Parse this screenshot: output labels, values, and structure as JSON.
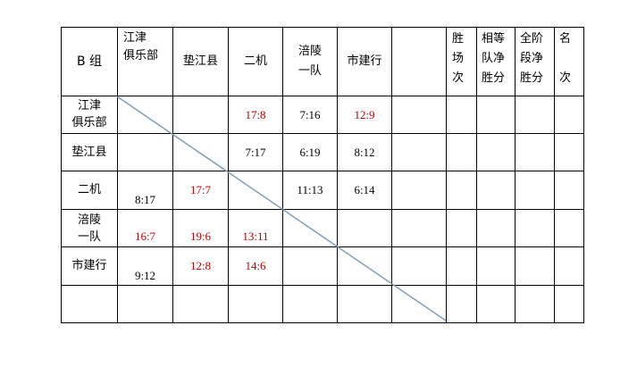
{
  "table": {
    "corner": "B 组",
    "team_headers": [
      "江津\n俱乐部",
      "垫江县",
      "二机",
      "涪陵\n一队",
      "市建行",
      ""
    ],
    "stat_headers": [
      "胜\n场\n次",
      "相等\n队净\n胜分",
      "全阶\n段净\n胜分",
      "名\n\n次"
    ],
    "rows": [
      {
        "team": "江津\n俱乐部",
        "cells": [
          {
            "v": ""
          },
          {
            "v": ""
          },
          {
            "v": "17:8",
            "red": true
          },
          {
            "v": "7:16"
          },
          {
            "v": "12:9",
            "red": true
          },
          {
            "v": ""
          }
        ]
      },
      {
        "team": "垫江县",
        "cells": [
          {
            "v": ""
          },
          {
            "v": ""
          },
          {
            "v": "7:17"
          },
          {
            "v": "6:19"
          },
          {
            "v": "8:12"
          },
          {
            "v": ""
          }
        ]
      },
      {
        "team": "二机",
        "cells": [
          {
            "v": "8:17"
          },
          {
            "v": "17:7",
            "red": true
          },
          {
            "v": ""
          },
          {
            "v": "11:13"
          },
          {
            "v": "6:14"
          },
          {
            "v": ""
          }
        ]
      },
      {
        "team": "涪陵\n一队",
        "cells": [
          {
            "v": "16:7",
            "red": true
          },
          {
            "v": "19:6",
            "red": true
          },
          {
            "v": "13:11",
            "red": true
          },
          {
            "v": ""
          },
          {
            "v": ""
          },
          {
            "v": ""
          }
        ]
      },
      {
        "team": "市建行",
        "cells": [
          {
            "v": "9:12"
          },
          {
            "v": "12:8",
            "red": true
          },
          {
            "v": "14:6",
            "red": true
          },
          {
            "v": ""
          },
          {
            "v": ""
          },
          {
            "v": ""
          }
        ]
      },
      {
        "team": "",
        "cells": [
          {
            "v": ""
          },
          {
            "v": ""
          },
          {
            "v": ""
          },
          {
            "v": ""
          },
          {
            "v": ""
          },
          {
            "v": ""
          }
        ]
      }
    ],
    "colors": {
      "win": "#c00000",
      "diagonal": "#7f9db9"
    }
  }
}
